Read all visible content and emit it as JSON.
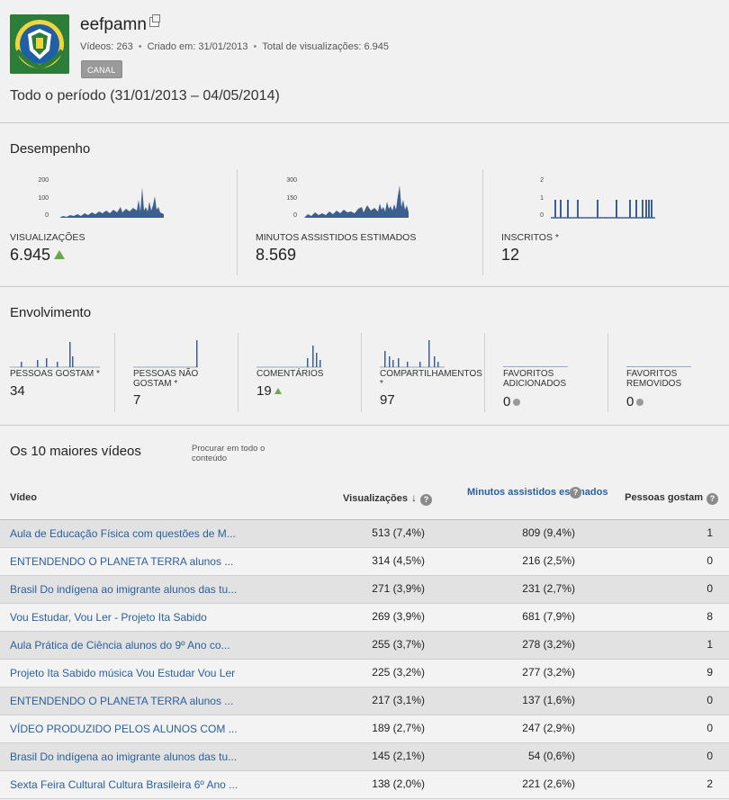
{
  "channel": {
    "name": "eefpamn",
    "videos": "Vídeos: 263",
    "created": "Criado em: 31/01/2013",
    "total_views": "Total de visualizações: 6.945",
    "canal_button": "CANAL"
  },
  "period": "Todo o período (31/01/2013 – 04/05/2014)",
  "performance": {
    "title": "Desempenho",
    "metrics": [
      {
        "label": "VISUALIZAÇÕES",
        "value": "6.945",
        "trend": "up",
        "axis": [
          "200",
          "100",
          "0"
        ]
      },
      {
        "label": "MINUTOS ASSISTIDOS ESTIMADOS",
        "value": "8.569",
        "trend": "none",
        "axis": [
          "300",
          "150",
          "0"
        ]
      },
      {
        "label": "INSCRITOS *",
        "value": "12",
        "trend": "none",
        "axis": [
          "2",
          "1",
          "0"
        ]
      }
    ]
  },
  "engagement": {
    "title": "Envolvimento",
    "metrics": [
      {
        "label": "PESSOAS GOSTAM *",
        "value": "34",
        "trend": "none"
      },
      {
        "label": "PESSOAS NÃO GOSTAM *",
        "value": "7",
        "trend": "none"
      },
      {
        "label": "COMENTÁRIOS",
        "value": "19",
        "trend": "up"
      },
      {
        "label": "COMPARTILHAMENTOS *",
        "value": "97",
        "trend": "none"
      },
      {
        "label": "FAVORITOS ADICIONADOS",
        "value": "0",
        "trend": "neutral"
      },
      {
        "label": "FAVORITOS REMOVIDOS",
        "value": "0",
        "trend": "neutral"
      }
    ]
  },
  "top_videos": {
    "title": "Os 10 maiores vídeos",
    "search_all": "Procurar em todo o conteúdo",
    "columns": {
      "video": "Vídeo",
      "views": "Visualizações",
      "minutes": "Minutos assistidos estimados",
      "likes": "Pessoas gostam"
    },
    "rows": [
      {
        "title": "Aula de Educação Física com questões de M...",
        "views": "513 (7,4%)",
        "minutes": "809 (9,4%)",
        "likes": "1"
      },
      {
        "title": "ENTENDENDO O PLANETA TERRA alunos ...",
        "views": "314 (4,5%)",
        "minutes": "216 (2,5%)",
        "likes": "0"
      },
      {
        "title": "Brasil Do indígena ao imigrante alunos das tu...",
        "views": "271 (3,9%)",
        "minutes": "231 (2,7%)",
        "likes": "0"
      },
      {
        "title": "Vou Estudar, Vou Ler - Projeto Ita Sabido",
        "views": "269 (3,9%)",
        "minutes": "681 (7,9%)",
        "likes": "8"
      },
      {
        "title": "Aula Prática de Ciência alunos do 9º Ano co...",
        "views": "255 (3,7%)",
        "minutes": "278 (3,2%)",
        "likes": "1"
      },
      {
        "title": "Projeto Ita Sabido música Vou Estudar Vou Ler",
        "views": "225 (3,2%)",
        "minutes": "277 (3,2%)",
        "likes": "9"
      },
      {
        "title": "ENTENDENDO O PLANETA TERRA alunos ...",
        "views": "217 (3,1%)",
        "minutes": "137 (1,6%)",
        "likes": "0"
      },
      {
        "title": "VÍDEO PRODUZIDO PELOS ALUNOS COM ...",
        "views": "189 (2,7%)",
        "minutes": "247 (2,9%)",
        "likes": "0"
      },
      {
        "title": "Brasil Do indígena ao imigrante alunos das tu...",
        "views": "145 (2,1%)",
        "minutes": "54 (0,6%)",
        "likes": "0"
      },
      {
        "title": "Sexta Feira Cultural Cultura Brasileira 6º Ano ...",
        "views": "138 (2,0%)",
        "minutes": "221 (2,6%)",
        "likes": "2"
      }
    ]
  },
  "colors": {
    "link": "#2a5f9e",
    "spark": "#3d5f8f",
    "up": "#6aa84f",
    "neutral": "#9a9a9a"
  }
}
